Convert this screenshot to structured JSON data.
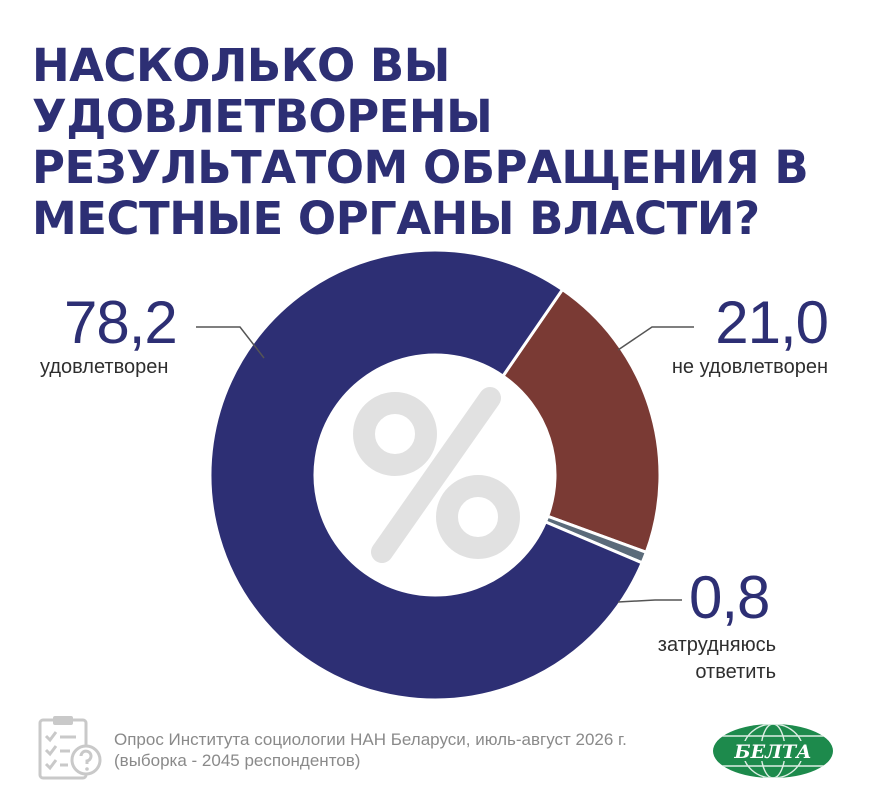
{
  "title": {
    "line1": "НАСКОЛЬКО ВЫ УДОВЛЕТВОРЕНЫ",
    "line2": "РЕЗУЛЬТАТОМ ОБРАЩЕНИЯ В",
    "line3": "МЕСТНЫЕ ОРГАНЫ ВЛАСТИ?"
  },
  "chart_data": {
    "type": "pie",
    "style": "donut",
    "title": "НАСКОЛЬКО ВЫ УДОВЛЕТВОРЕНЫ РЕЗУЛЬТАТОМ ОБРАЩЕНИЯ В МЕСТНЫЕ ОРГАНЫ ВЛАСТИ?",
    "center_symbol": "%",
    "slices": [
      {
        "label": "удовлетворен",
        "value": 78.2,
        "display": "78,2",
        "color": "#2d2f74"
      },
      {
        "label": "не удовлетворен",
        "value": 21.0,
        "display": "21,0",
        "color": "#7a3a34"
      },
      {
        "label": "затрудняюсь ответить",
        "display": "0,8",
        "value": 0.8,
        "color": "#5b6b7a"
      }
    ],
    "label_lines": [
      "затрудняюсь",
      "ответить"
    ]
  },
  "footer": {
    "source_line1": "Опрос Института социологии НАН Беларуси, июль-август 2026 г.",
    "source_line2": "(выборка - 2045 респондентов)",
    "logo_text": "БЕЛТА",
    "icon": "survey-clipboard-icon"
  }
}
